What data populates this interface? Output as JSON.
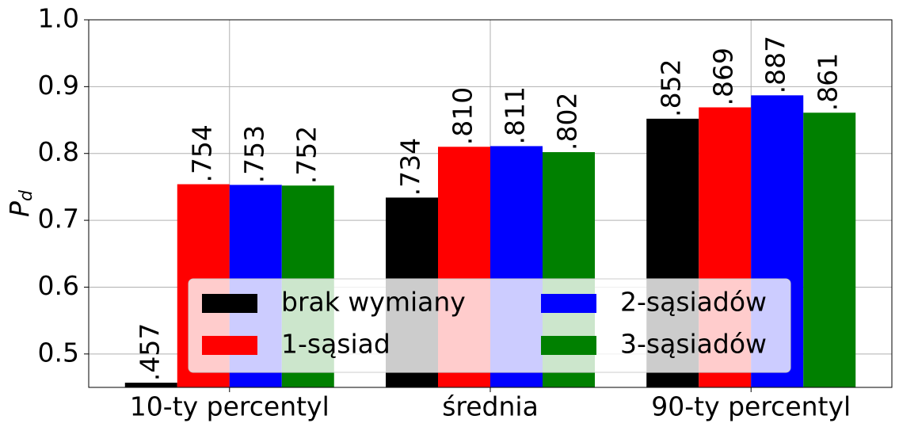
{
  "chart_data": {
    "type": "bar",
    "ylabel": {
      "text": "P",
      "subscript": "d"
    },
    "categories": [
      "10-ty percentyl",
      "średnia",
      "90-ty percentyl"
    ],
    "series": [
      {
        "name": "brak wymiany",
        "color": "#000000",
        "values": [
          0.457,
          0.734,
          0.852
        ],
        "value_labels": [
          ".457",
          ".734",
          ".852"
        ]
      },
      {
        "name": "1-sąsiad",
        "color": "#ff0000",
        "values": [
          0.754,
          0.81,
          0.869
        ],
        "value_labels": [
          ".754",
          ".810",
          ".869"
        ]
      },
      {
        "name": "2-sąsiadów",
        "color": "#0000ff",
        "values": [
          0.753,
          0.811,
          0.887
        ],
        "value_labels": [
          ".753",
          ".811",
          ".887"
        ]
      },
      {
        "name": "3-sąsiadów",
        "color": "#008000",
        "values": [
          0.752,
          0.802,
          0.861
        ],
        "value_labels": [
          ".752",
          ".802",
          ".861"
        ]
      }
    ],
    "ylim": [
      0.45,
      1.0
    ],
    "yticks": [
      0.5,
      0.6,
      0.7,
      0.8,
      0.9,
      {
        "value": 1.0,
        "label": "1.0"
      }
    ],
    "grid": true,
    "legend": "lower center"
  }
}
